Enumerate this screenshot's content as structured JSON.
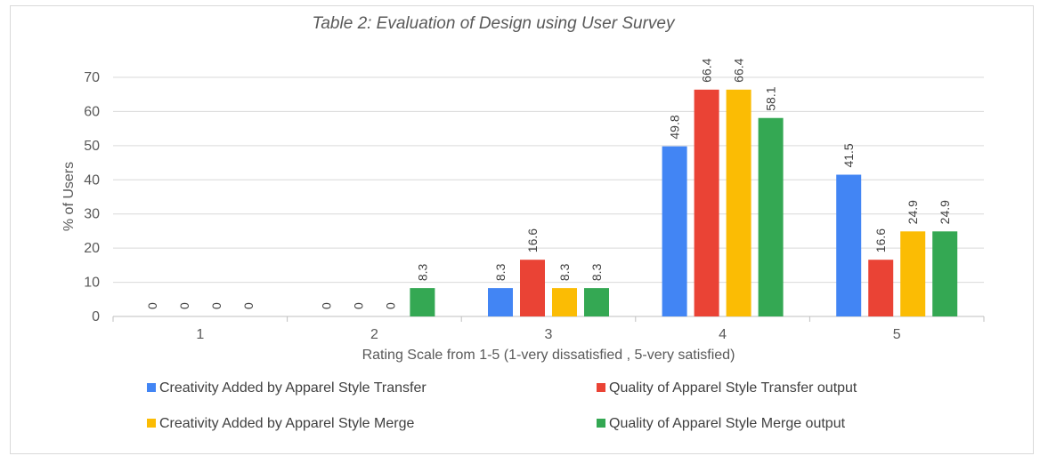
{
  "chart_data": {
    "type": "bar",
    "title": "Table 2: Evaluation of Design using User Survey",
    "xlabel": "Rating Scale from 1-5 (1-very dissatisfied , 5-very satisfied)",
    "ylabel": "% of Users",
    "categories": [
      "1",
      "2",
      "3",
      "4",
      "5"
    ],
    "ylim": [
      0,
      70
    ],
    "yticks": [
      0,
      10,
      20,
      30,
      40,
      50,
      60,
      70
    ],
    "grid": true,
    "legend_position": "bottom",
    "series": [
      {
        "name": "Creativity Added by Apparel Style Transfer",
        "color": "#4285f4",
        "values": [
          0,
          0,
          8.3,
          49.8,
          41.5
        ],
        "labels": [
          "0",
          "0",
          "8.3",
          "49.8",
          "41.5"
        ]
      },
      {
        "name": "Quality of Apparel Style Transfer output",
        "color": "#ea4335",
        "values": [
          0,
          0,
          16.6,
          66.4,
          16.6
        ],
        "labels": [
          "0",
          "0",
          "16.6",
          "66.4",
          "16.6"
        ]
      },
      {
        "name": "Creativity Added by Apparel Style Merge",
        "color": "#fbbc04",
        "values": [
          0,
          0,
          8.3,
          66.4,
          24.9
        ],
        "labels": [
          "0",
          "0",
          "8.3",
          "66.4",
          "24.9"
        ]
      },
      {
        "name": "Quality of Apparel Style Merge output",
        "color": "#34a853",
        "values": [
          0,
          8.3,
          8.3,
          58.1,
          24.9
        ],
        "labels": [
          "0",
          "8.3",
          "8.3",
          "58.1",
          "24.9"
        ]
      }
    ]
  }
}
